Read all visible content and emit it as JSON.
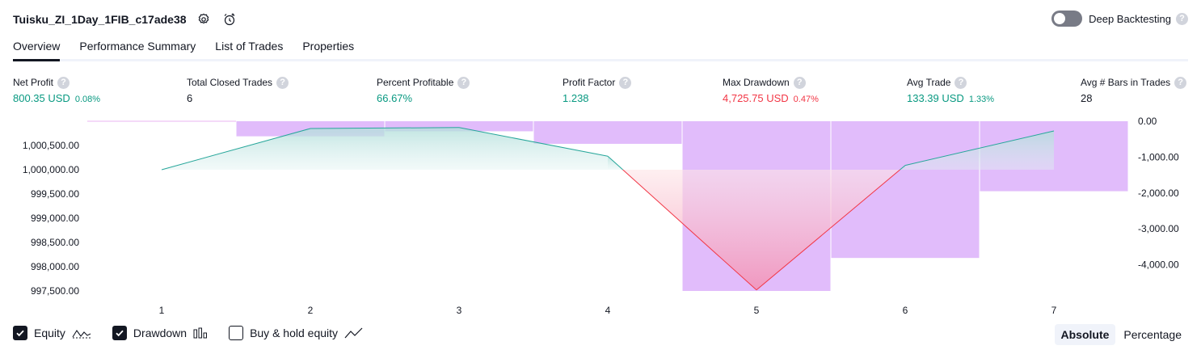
{
  "header": {
    "strategy_title": "Tuisku_ZI_1Day_1FIB_c17ade38",
    "deep_backtesting_label": "Deep Backtesting",
    "deep_backtesting_enabled": false,
    "help_glyph": "?"
  },
  "tabs": [
    {
      "label": "Overview",
      "active": true
    },
    {
      "label": "Performance Summary",
      "active": false
    },
    {
      "label": "List of Trades",
      "active": false
    },
    {
      "label": "Properties",
      "active": false
    }
  ],
  "metrics": [
    {
      "label": "Net Profit",
      "value": "800.35 USD",
      "pct": "0.08%",
      "color": "#089981"
    },
    {
      "label": "Total Closed Trades",
      "value": "6",
      "pct": "",
      "color": "#131722"
    },
    {
      "label": "Percent Profitable",
      "value": "66.67%",
      "pct": "",
      "color": "#089981"
    },
    {
      "label": "Profit Factor",
      "value": "1.238",
      "pct": "",
      "color": "#089981"
    },
    {
      "label": "Max Drawdown",
      "value": "4,725.75 USD",
      "pct": "0.47%",
      "color": "#f23645"
    },
    {
      "label": "Avg Trade",
      "value": "133.39 USD",
      "pct": "1.33%",
      "color": "#089981"
    },
    {
      "label": "Avg # Bars in Trades",
      "value": "28",
      "pct": "",
      "color": "#131722"
    }
  ],
  "chart_data": {
    "type": "line",
    "x": [
      1,
      2,
      3,
      4,
      5,
      6,
      7
    ],
    "series": [
      {
        "name": "Equity",
        "type": "line",
        "axis": "left",
        "baseline": 1000000,
        "values": [
          1000000,
          1000850,
          1000870,
          1000280,
          997520,
          1000090,
          1000800
        ]
      },
      {
        "name": "Drawdown",
        "type": "bar",
        "axis": "right",
        "values": [
          0,
          -420,
          -280,
          -630,
          -4730,
          -3810,
          -1950
        ]
      }
    ],
    "left_ticks": [
      "1,000,500.00",
      "1,000,000.00",
      "999,500.00",
      "999,000.00",
      "998,500.00",
      "998,000.00",
      "997,500.00"
    ],
    "left_tick_values": [
      1000500,
      1000000,
      999500,
      999000,
      998500,
      998000,
      997500
    ],
    "right_ticks": [
      "0.00",
      "-1,000.00",
      "-2,000.00",
      "-3,000.00",
      "-4,000.00"
    ],
    "right_tick_values": [
      0,
      -1000,
      -2000,
      -3000,
      -4000
    ],
    "left_ylim": [
      997500,
      1001000
    ],
    "right_ylim": [
      -4730,
      0
    ],
    "colors": {
      "equity_line": "#26a69a",
      "equity_fill_top": "#b2dfdb",
      "loss_line": "#f23645",
      "loss_fill": "#f48fb1",
      "drawdown_bar": "#ce93f8"
    }
  },
  "legend": [
    {
      "label": "Equity",
      "checked": true,
      "icon": "equity-line-icon"
    },
    {
      "label": "Drawdown",
      "checked": true,
      "icon": "drawdown-bars-icon"
    },
    {
      "label": "Buy & hold equity",
      "checked": false,
      "icon": "buy-hold-line-icon"
    }
  ],
  "view_modes": [
    {
      "label": "Absolute",
      "active": true
    },
    {
      "label": "Percentage",
      "active": false
    }
  ]
}
